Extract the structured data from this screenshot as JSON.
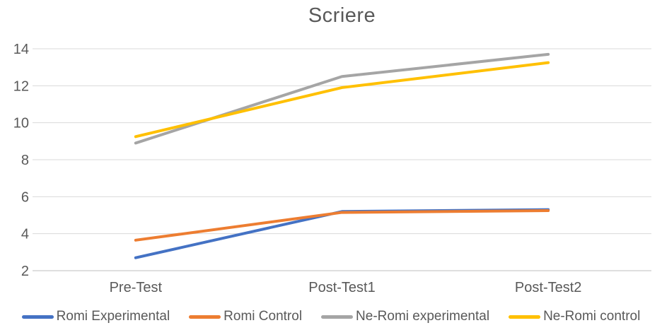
{
  "chart_data": {
    "type": "line",
    "title": "Scriere",
    "categories": [
      "Pre-Test",
      "Post-Test1",
      "Post-Test2"
    ],
    "series": [
      {
        "name": "Romi Experimental",
        "color": "#4472C4",
        "values": [
          2.7,
          5.2,
          5.3
        ]
      },
      {
        "name": "Romi Control",
        "color": "#ED7D31",
        "values": [
          3.65,
          5.15,
          5.25
        ]
      },
      {
        "name": "Ne-Romi experimental",
        "color": "#A5A5A5",
        "values": [
          8.9,
          12.5,
          13.7
        ]
      },
      {
        "name": "Ne-Romi control",
        "color": "#FFC000",
        "values": [
          9.25,
          11.9,
          13.25
        ]
      }
    ],
    "ylim": [
      2,
      14
    ],
    "yticks": [
      2,
      4,
      6,
      8,
      10,
      12,
      14
    ],
    "grid": true,
    "legend_position": "bottom",
    "colors": {
      "text": "#595959",
      "gridline": "#D9D9D9",
      "axis_line": "#BFBFBF"
    }
  }
}
